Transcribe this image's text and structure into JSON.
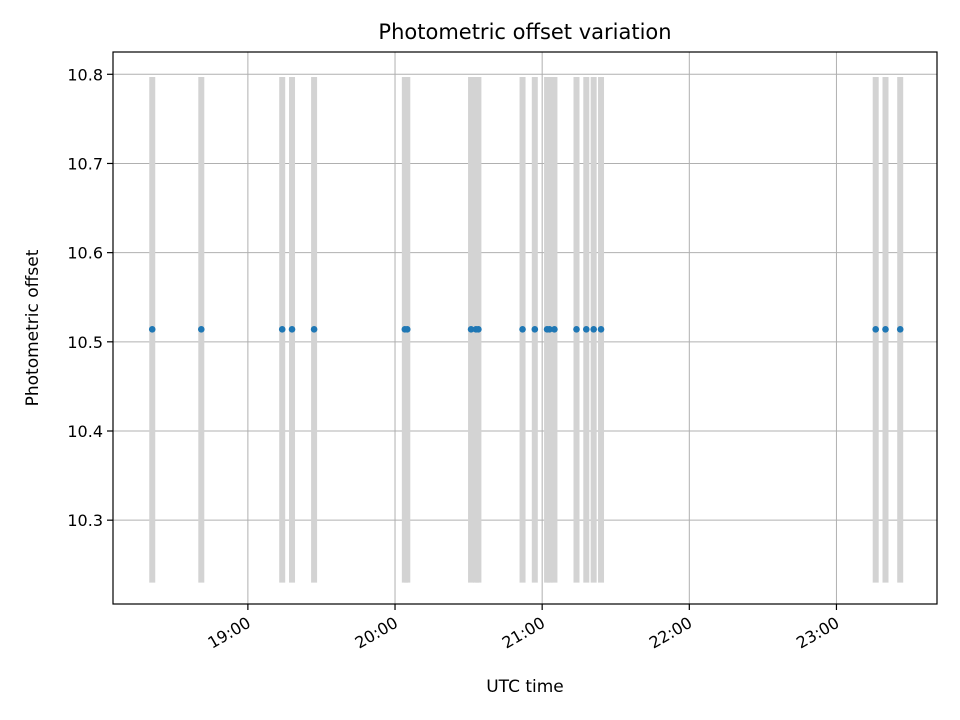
{
  "chart_data": {
    "type": "scatter",
    "title": "Photometric offset variation",
    "xlabel": "UTC time",
    "ylabel": "Photometric offset",
    "x_axis_kind": "time",
    "xlim": [
      "18:05",
      "23:41"
    ],
    "ylim": [
      10.206,
      10.825
    ],
    "grid": true,
    "x_ticks": [
      "19:00",
      "20:00",
      "21:00",
      "22:00",
      "23:00"
    ],
    "x_tick_labels": [
      "19:00",
      "20:00",
      "21:00",
      "22:00",
      "23:00"
    ],
    "y_ticks": [
      10.3,
      10.4,
      10.5,
      10.6,
      10.7,
      10.8
    ],
    "y_tick_labels": [
      "10.3",
      "10.4",
      "10.5",
      "10.6",
      "10.7",
      "10.8"
    ],
    "vertical_band": {
      "y_range": [
        10.23,
        10.797
      ],
      "color": "#d3d3d3"
    },
    "marker_color": "#1f77b4",
    "points": [
      {
        "x": "18:21",
        "y": 10.514
      },
      {
        "x": "18:41",
        "y": 10.514
      },
      {
        "x": "19:14",
        "y": 10.514
      },
      {
        "x": "19:18",
        "y": 10.514
      },
      {
        "x": "19:27",
        "y": 10.514
      },
      {
        "x": "20:04",
        "y": 10.514
      },
      {
        "x": "20:05",
        "y": 10.514
      },
      {
        "x": "20:31",
        "y": 10.514
      },
      {
        "x": "20:33",
        "y": 10.514
      },
      {
        "x": "20:34",
        "y": 10.514
      },
      {
        "x": "20:52",
        "y": 10.514
      },
      {
        "x": "20:57",
        "y": 10.514
      },
      {
        "x": "21:02",
        "y": 10.514
      },
      {
        "x": "21:03",
        "y": 10.514
      },
      {
        "x": "21:05",
        "y": 10.514
      },
      {
        "x": "21:14",
        "y": 10.514
      },
      {
        "x": "21:18",
        "y": 10.514
      },
      {
        "x": "21:21",
        "y": 10.514
      },
      {
        "x": "21:24",
        "y": 10.514
      },
      {
        "x": "23:16",
        "y": 10.514
      },
      {
        "x": "23:20",
        "y": 10.514
      },
      {
        "x": "23:26",
        "y": 10.514
      }
    ]
  }
}
